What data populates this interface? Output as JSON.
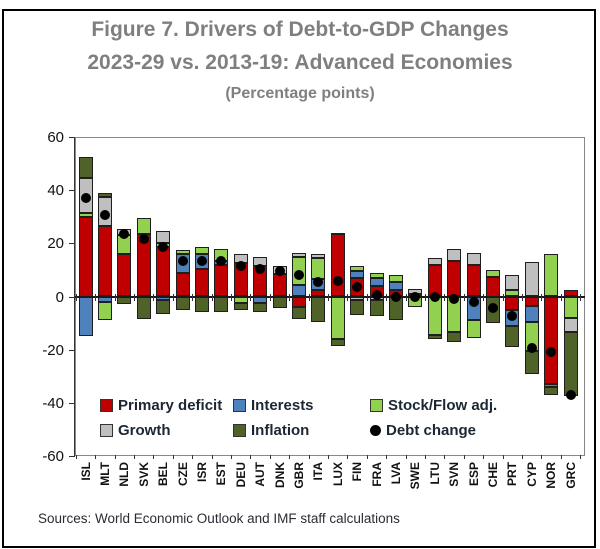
{
  "figure": {
    "title_line1": "Figure 7. Drivers of Debt-to-GDP Changes",
    "title_line2": "2023-29 vs. 2013-19: Advanced Economies",
    "subtitle": "(Percentage points)",
    "source": "Sources: World Economic Outlook and IMF staff calculations"
  },
  "chart_data": {
    "type": "bar",
    "stacked": true,
    "title": "Figure 7. Drivers of Debt-to-GDP Changes 2023-29 vs. 2013-19: Advanced Economies",
    "ylabel": "Percentage points",
    "ylim": [
      -60,
      60
    ],
    "yticks": [
      60,
      40,
      20,
      0,
      -20,
      -40,
      -60
    ],
    "grid": false,
    "legend_position": "inside-bottom-left",
    "categories": [
      "ISL",
      "MLT",
      "NLD",
      "SVK",
      "BEL",
      "CZE",
      "ISR",
      "EST",
      "DEU",
      "AUT",
      "DNK",
      "GBR",
      "ITA",
      "LUX",
      "FIN",
      "FRA",
      "LVA",
      "SWE",
      "LTU",
      "SVN",
      "ESP",
      "CHE",
      "PRT",
      "CYP",
      "NOR",
      "GRC"
    ],
    "series": [
      {
        "name": "Primary deficit",
        "color": "#C00000",
        "values": [
          30,
          26.5,
          16,
          23.5,
          18.5,
          9,
          10.5,
          12,
          12.5,
          11.5,
          8.5,
          -4,
          2.5,
          23.5,
          7,
          4,
          2.5,
          1,
          12,
          13.5,
          12,
          7.5,
          -5,
          -3.5,
          -33,
          2.5
        ]
      },
      {
        "name": "Interests",
        "color": "#4F81BD",
        "values": [
          -15,
          -2,
          0,
          0,
          -1.5,
          7,
          5.5,
          1.5,
          0,
          -2.5,
          0,
          4.5,
          4,
          0.5,
          2.5,
          3,
          3,
          0,
          0,
          0,
          -9,
          0,
          -6,
          -6,
          -1,
          0
        ]
      },
      {
        "name": "Stock/Flow adj.",
        "color": "#92D050",
        "values": [
          1.5,
          -7,
          7,
          6,
          1.5,
          1.5,
          2.5,
          4.5,
          -2.5,
          0,
          0,
          10.5,
          8,
          -16,
          2,
          2,
          2.5,
          -4,
          -14.5,
          -13.5,
          -6.5,
          2.5,
          2.5,
          -11,
          16,
          -8
        ]
      },
      {
        "name": "Growth",
        "color": "#BFBFBF",
        "values": [
          13,
          11,
          2.5,
          0,
          4.5,
          0,
          0,
          0,
          3.5,
          3.5,
          3,
          1.5,
          1.5,
          0,
          -1.5,
          -1.5,
          0,
          2,
          2.5,
          4.5,
          4.5,
          0,
          5.5,
          13,
          0,
          -5.5
        ]
      },
      {
        "name": "Inflation",
        "color": "#4F6228",
        "values": [
          8,
          1.5,
          -3,
          -8.5,
          -5,
          -5,
          -6,
          -6,
          -2.5,
          -3.5,
          -4.5,
          -4.5,
          -9.5,
          -2.5,
          -5.5,
          -6,
          -9,
          0,
          -1.5,
          -3.5,
          0,
          -10,
          -8,
          -8.5,
          -3,
          -24
        ]
      }
    ],
    "dot_series": {
      "name": "Debt change",
      "color": "#000000",
      "values": [
        37,
        30.5,
        23.5,
        21.5,
        18.5,
        13.5,
        13.5,
        13.5,
        11.5,
        10.5,
        9.5,
        8,
        5.5,
        6,
        3.5,
        0.5,
        0,
        0,
        0,
        -1,
        -2,
        -4.5,
        -7.5,
        -19.5,
        -21,
        -37
      ]
    }
  }
}
